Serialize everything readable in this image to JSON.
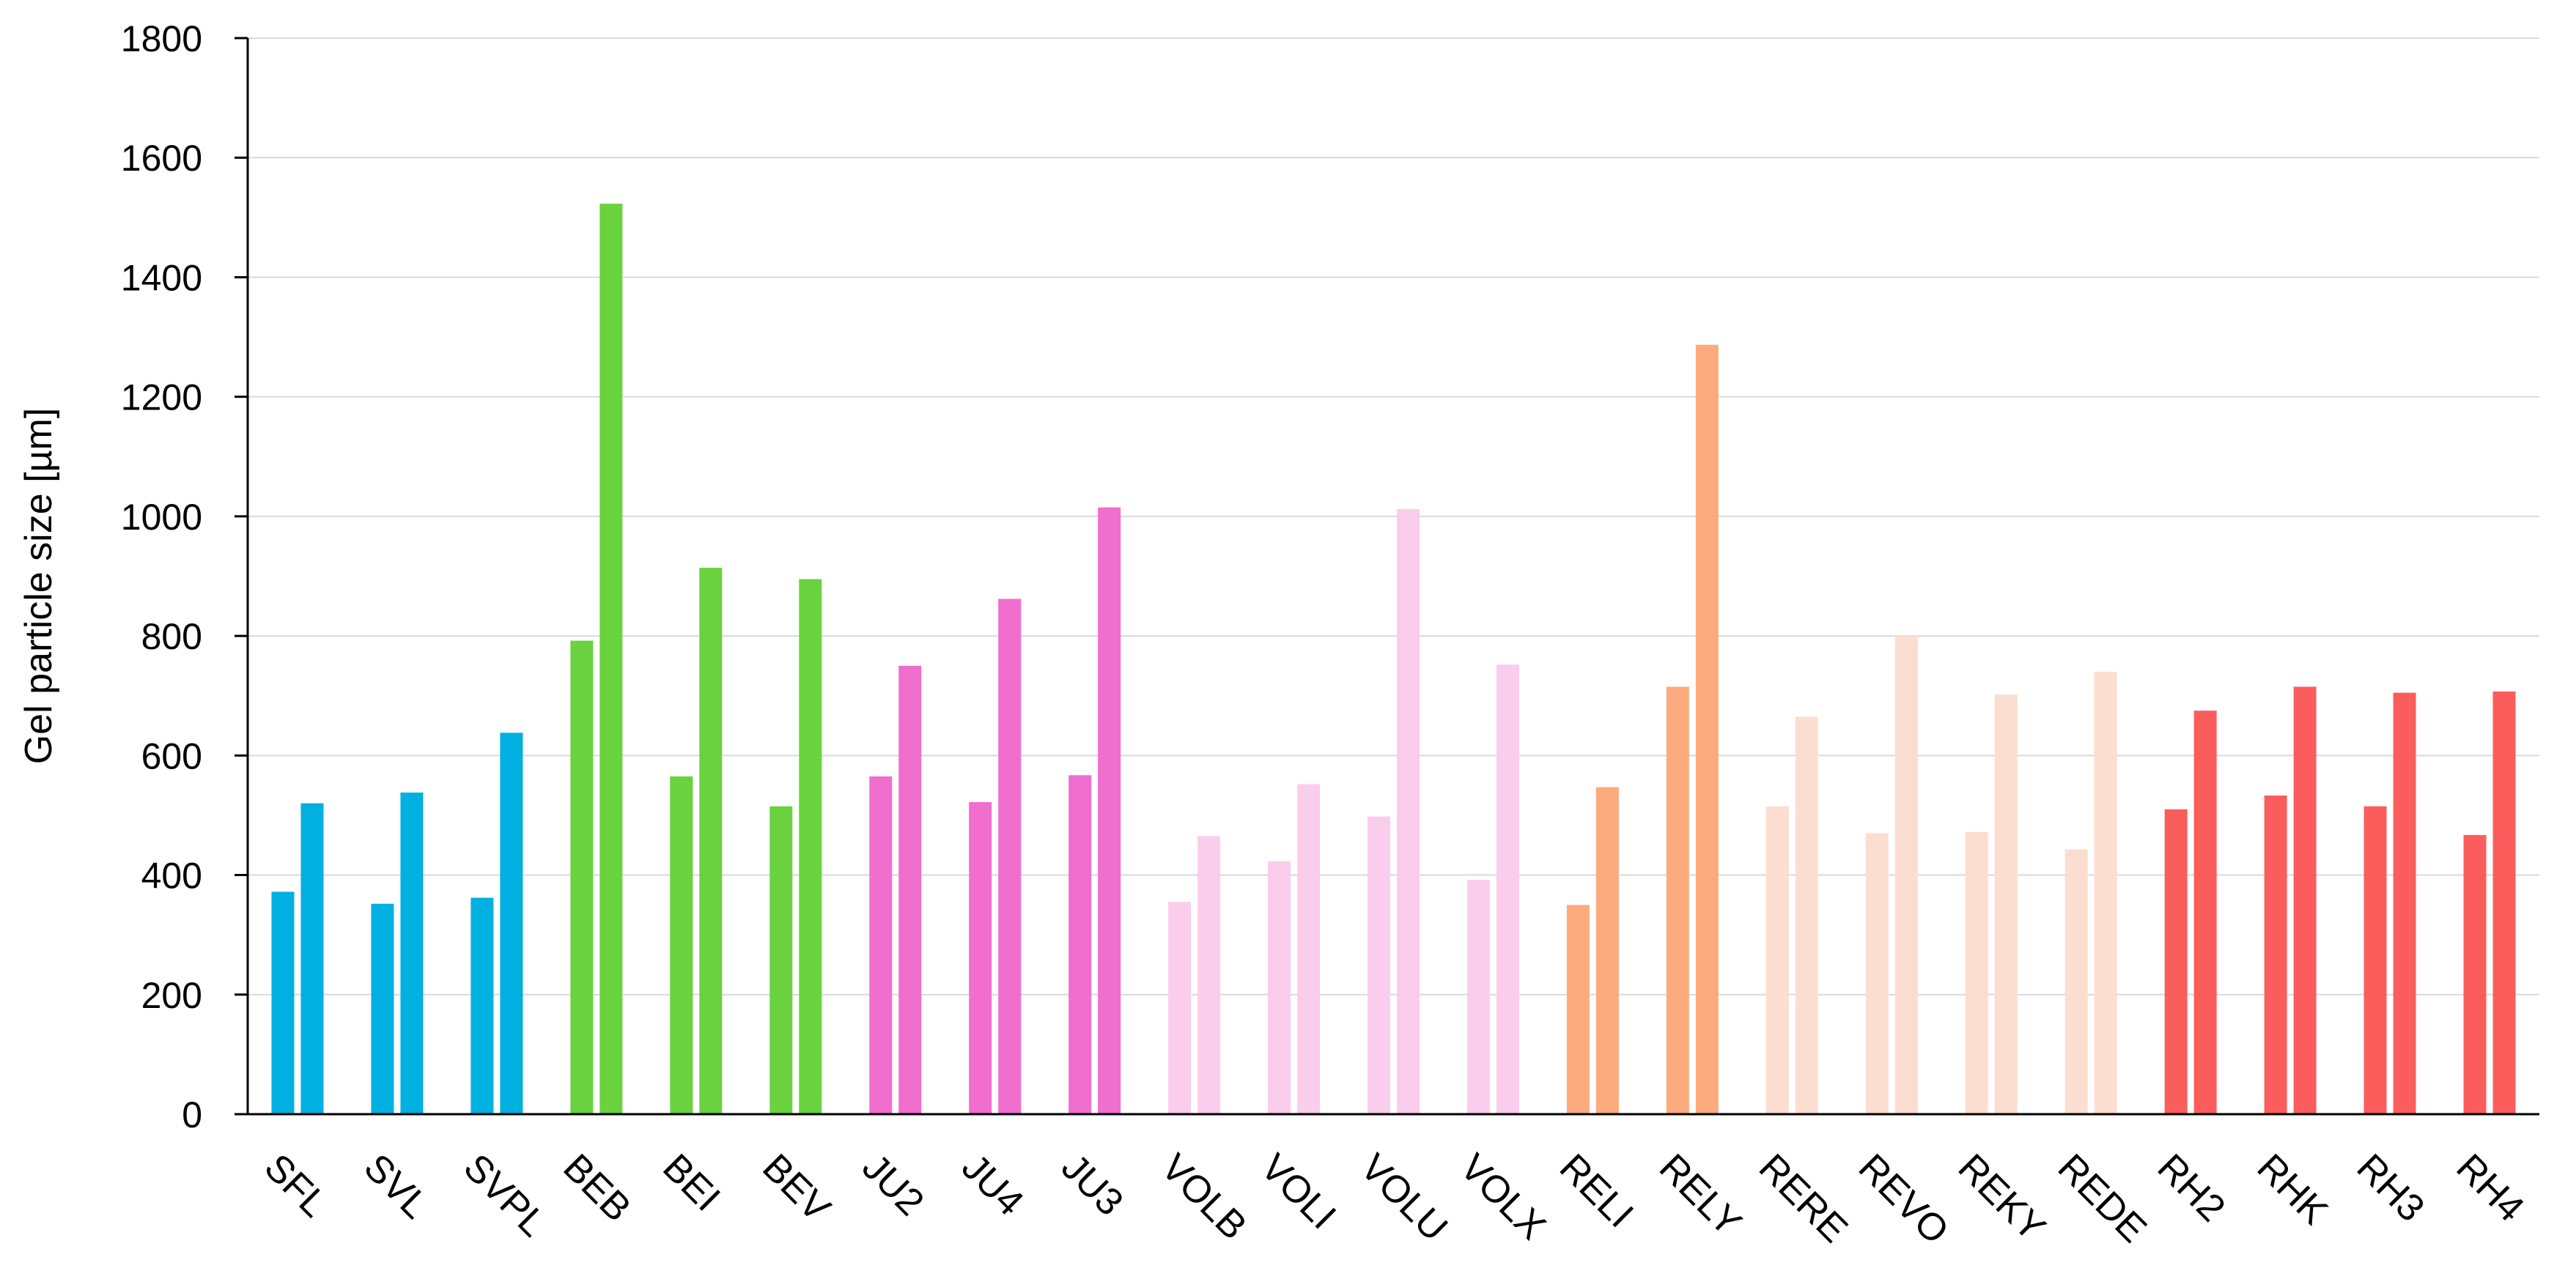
{
  "chart_data": {
    "type": "bar",
    "ylabel": "Gel particle size [µm]",
    "xlabel": "",
    "ylim": [
      0,
      1800
    ],
    "yticks": [
      0,
      200,
      400,
      600,
      800,
      1000,
      1200,
      1400,
      1600,
      1800
    ],
    "grid": true,
    "legend": "none",
    "categories": [
      "SFL",
      "SVL",
      "SVPL",
      "BEB",
      "BEI",
      "BEV",
      "JU2",
      "JU4",
      "JU3",
      "VOLB",
      "VOLI",
      "VOLU",
      "VOLX",
      "RELI",
      "RELY",
      "RERE",
      "REVO",
      "REKY",
      "REDE",
      "RH2",
      "RHK",
      "RH3",
      "RH4"
    ],
    "category_colors": [
      "#00b0e0",
      "#00b0e0",
      "#00b0e0",
      "#6ad23f",
      "#6ad23f",
      "#6ad23f",
      "#f06ece",
      "#f06ece",
      "#f06ece",
      "#fbcdec",
      "#fbcdec",
      "#fbcdec",
      "#fbcdec",
      "#fbab7e",
      "#fbab7e",
      "#fcded0",
      "#fcded0",
      "#fcded0",
      "#fcded0",
      "#fb5d5d",
      "#fb5d5d",
      "#fb5d5d",
      "#fb5d5d"
    ],
    "series": [
      {
        "values": [
          372,
          352,
          362,
          792,
          565,
          515,
          565,
          522,
          567,
          355,
          423,
          498,
          392,
          350,
          715,
          515,
          470,
          472,
          443,
          510,
          533,
          515,
          467
        ]
      },
      {
        "values": [
          520,
          538,
          638,
          1523,
          914,
          895,
          750,
          862,
          1015,
          465,
          552,
          1012,
          752,
          547,
          1287,
          665,
          800,
          702,
          740,
          675,
          715,
          705,
          707
        ]
      }
    ]
  }
}
